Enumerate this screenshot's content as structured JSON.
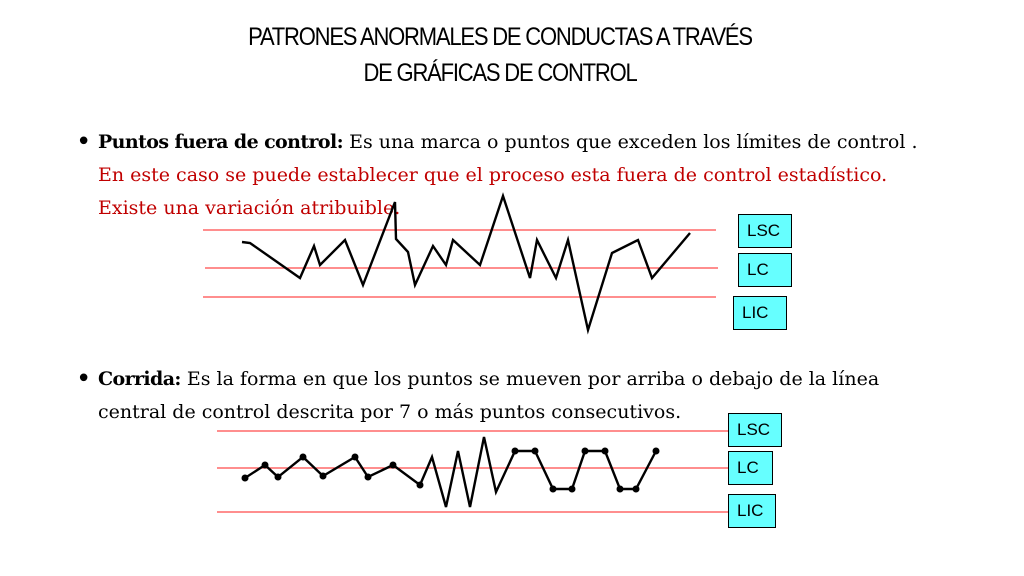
{
  "title": {
    "line1": "PATRONES ANORMALES DE CONDUCTAS A TRAVÉS",
    "line2": "DE GRÁFICAS DE CONTROL"
  },
  "bullets": [
    {
      "bullet": "•",
      "term": "Puntos fuera de control:",
      "text_black": " Es una marca o puntos que exceden los límites de control . ",
      "text_red": "En este caso se puede establecer que el proceso esta fuera de control estadístico.  Existe  una variación atribuible."
    },
    {
      "bullet": "•",
      "term": "Corrida:",
      "text_black": " Es la forma en que los puntos se mueven por arriba o debajo de la línea central de control descrita por 7 o más puntos consecutivos.",
      "text_red": ""
    }
  ],
  "labels": {
    "lsc": "LSC",
    "lc": "LC",
    "lic": "LIC"
  },
  "colors": {
    "limit_line": "#ff4b4b",
    "label_box": "#66ffff",
    "emphasis_text": "#c00000"
  }
}
